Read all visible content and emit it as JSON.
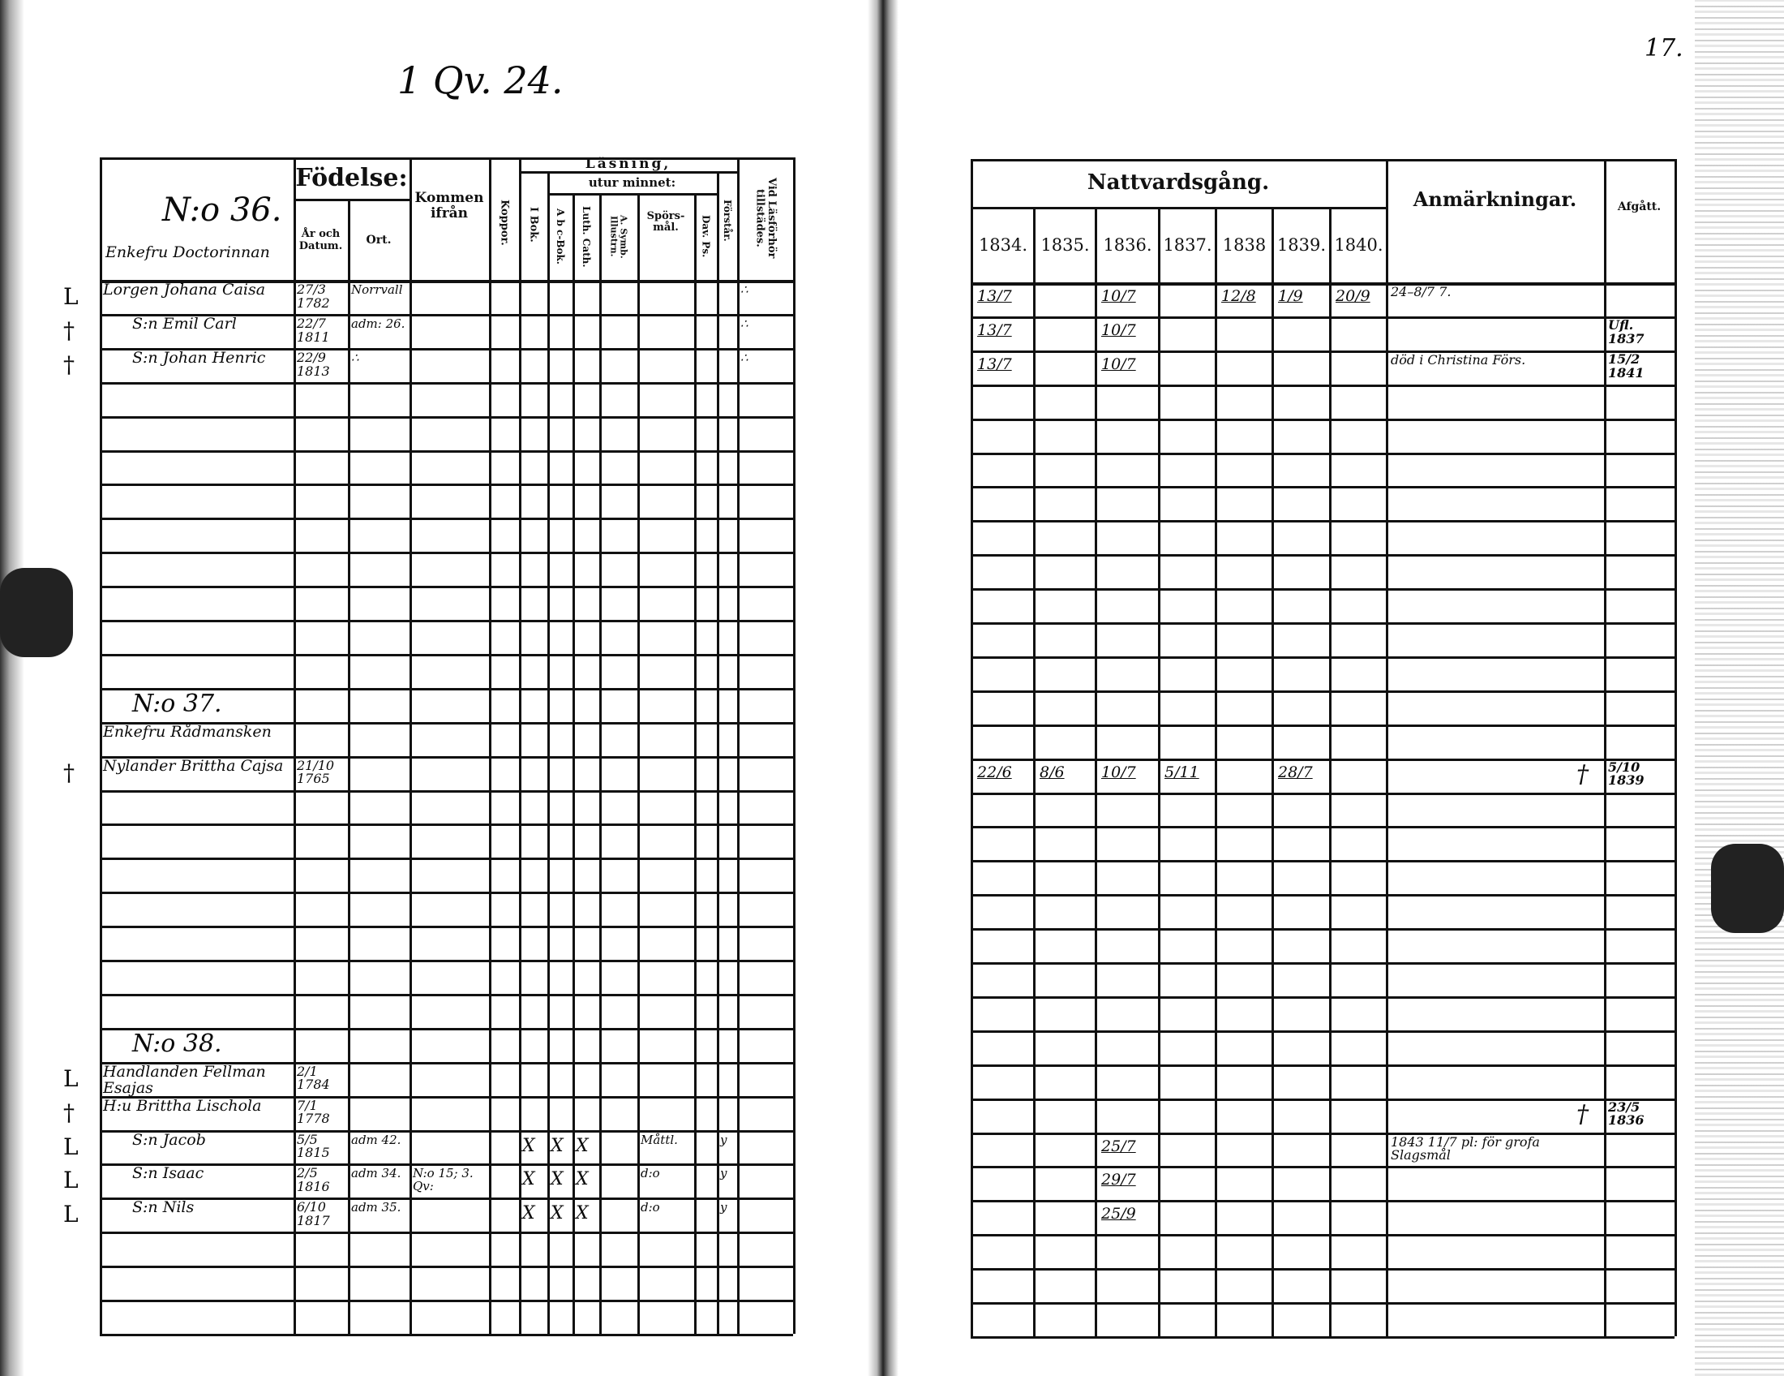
{
  "page_marks": {
    "left_top": "1 Qv. 24.",
    "right_page_number": "17."
  },
  "left": {
    "header": {
      "household_no": "N:o 36.",
      "household_title": "Enkefru Doctorinnan",
      "fodelse": "Födelse:",
      "ar_och_datum": "År och Datum.",
      "ort": "Ort.",
      "kommen": "Kommen ifrån",
      "koppor": "Koppor.",
      "lasning": "Läsning,",
      "bok1": "I Bok.",
      "utur_minnet": "utur minnet:",
      "abc": "A b c-Bok.",
      "luth": "Luth. Cath.",
      "symb": "A. Symb. Illustrn.",
      "spors": "Spörs-mål.",
      "dav": "Dav. Ps.",
      "forstar": "Förstår.",
      "vid": "Vid Läsförhör tillstädes."
    },
    "rows": [
      {
        "margin": "L",
        "name": "Lorgen Johana Caisa",
        "born": "27/3 1782",
        "ort": "Norrvall",
        "vid": "∴"
      },
      {
        "margin": "†",
        "name": "S:n Emil Carl",
        "born": "22/7 1811",
        "ort": "adm: 26.",
        "vid": "∴"
      },
      {
        "margin": "†",
        "name": "S:n Johan Henric",
        "born": "22/9 1813",
        "ort": "∴",
        "vid": "∴"
      },
      {},
      {},
      {},
      {},
      {},
      {},
      {},
      {},
      {},
      {
        "name": "N:o 37."
      },
      {
        "name": "Enkefru Rådmansken"
      },
      {
        "margin": "†",
        "name": "Nylander Brittha Cajsa",
        "born": "21/10 1765"
      },
      {},
      {},
      {},
      {},
      {},
      {},
      {},
      {
        "name": "N:o 38."
      },
      {
        "margin": "L",
        "name": "Handlanden Fellman Esajas",
        "born": "2/1 1784"
      },
      {
        "margin": "†",
        "name": "H:u Brittha Lischola",
        "born": "7/1 1778"
      },
      {
        "margin": "L",
        "name": "S:n Jacob",
        "born": "5/5 1815",
        "ort": "adm 42.",
        "bok1": "X",
        "abc": "X",
        "luth": "X",
        "spors": "Måttl.",
        "forstar": "y"
      },
      {
        "margin": "L",
        "name": "S:n Isaac",
        "born": "2/5 1816",
        "ort": "adm 34.",
        "kommen": "N:o 15; 3. Qv:",
        "bok1": "X",
        "abc": "X",
        "luth": "X",
        "spors": "d:o",
        "forstar": "y"
      },
      {
        "margin": "L",
        "name": "S:n Nils",
        "born": "6/10 1817",
        "ort": "adm 35.",
        "bok1": "X",
        "abc": "X",
        "luth": "X",
        "spors": "d:o",
        "forstar": "y"
      },
      {},
      {},
      {}
    ]
  },
  "right": {
    "header": {
      "nattvard": "Nattvardsgång.",
      "years": [
        "1834.",
        "1835.",
        "1836.",
        "1837.",
        "1838",
        "1839.",
        "1840."
      ],
      "anm": "Anmärkningar.",
      "afgatt": "Afgått."
    },
    "rows": [
      {
        "y": [
          "13/7",
          "",
          "10/7",
          "",
          "12/8",
          "1/9",
          "20/9"
        ],
        "anm": "24–8/7 7."
      },
      {
        "y": [
          "13/7",
          "",
          "10/7",
          "",
          "",
          "",
          ""
        ],
        "afgatt": "Ufl. 1837"
      },
      {
        "y": [
          "13/7",
          "",
          "10/7",
          "",
          "",
          "",
          ""
        ],
        "anm": "död i Christina Förs.",
        "afgatt": "15/2 1841"
      },
      {},
      {},
      {},
      {},
      {},
      {},
      {},
      {},
      {},
      {},
      {},
      {
        "y": [
          "22/6",
          "8/6",
          "10/7",
          "5/11",
          "",
          "28/7",
          ""
        ],
        "anm": "†",
        "afgatt": "5/10 1839"
      },
      {},
      {},
      {},
      {},
      {},
      {},
      {},
      {},
      {},
      {
        "anm": "†",
        "afgatt": "23/5 1836"
      },
      {
        "y": [
          "",
          "",
          "25/7",
          "",
          "",
          "",
          ""
        ],
        "anm": "1843 11/7 pl: för grofa Slagsmål"
      },
      {
        "y": [
          "",
          "",
          "29/7",
          "",
          "",
          "",
          ""
        ]
      },
      {
        "y": [
          "",
          "",
          "25/9",
          "",
          "",
          "",
          ""
        ]
      },
      {},
      {},
      {}
    ]
  }
}
